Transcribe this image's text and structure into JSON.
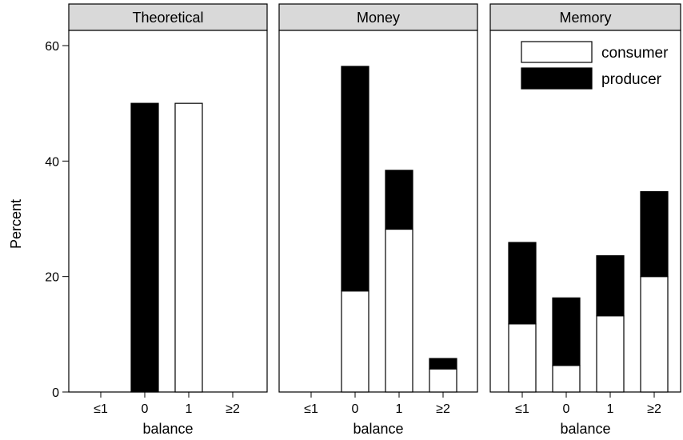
{
  "chart_data": {
    "type": "bar",
    "stacked": true,
    "ylabel": "Percent",
    "xlabel": "balance",
    "ylim": [
      0,
      62
    ],
    "yticks": [
      0,
      20,
      40,
      60
    ],
    "categories": [
      "≤1",
      "0",
      "1",
      "≥2"
    ],
    "legend": {
      "placement": "top-right",
      "items": [
        {
          "name": "consumer",
          "color": "#ffffff"
        },
        {
          "name": "producer",
          "color": "#000000"
        }
      ]
    },
    "panels": [
      {
        "title": "Theoretical",
        "series": [
          {
            "name": "consumer",
            "values": [
              0,
              0,
              50,
              0
            ]
          },
          {
            "name": "producer",
            "values": [
              0,
              50,
              0,
              0
            ]
          }
        ]
      },
      {
        "title": "Money",
        "series": [
          {
            "name": "consumer",
            "values": [
              0,
              17.5,
              28.2,
              4
            ]
          },
          {
            "name": "producer",
            "values": [
              0,
              38.9,
              10.2,
              1.8
            ]
          }
        ]
      },
      {
        "title": "Memory",
        "series": [
          {
            "name": "consumer",
            "values": [
              11.8,
              4.6,
              13.2,
              20
            ]
          },
          {
            "name": "producer",
            "values": [
              14.1,
              11.7,
              10.4,
              14.7
            ]
          }
        ]
      }
    ]
  }
}
